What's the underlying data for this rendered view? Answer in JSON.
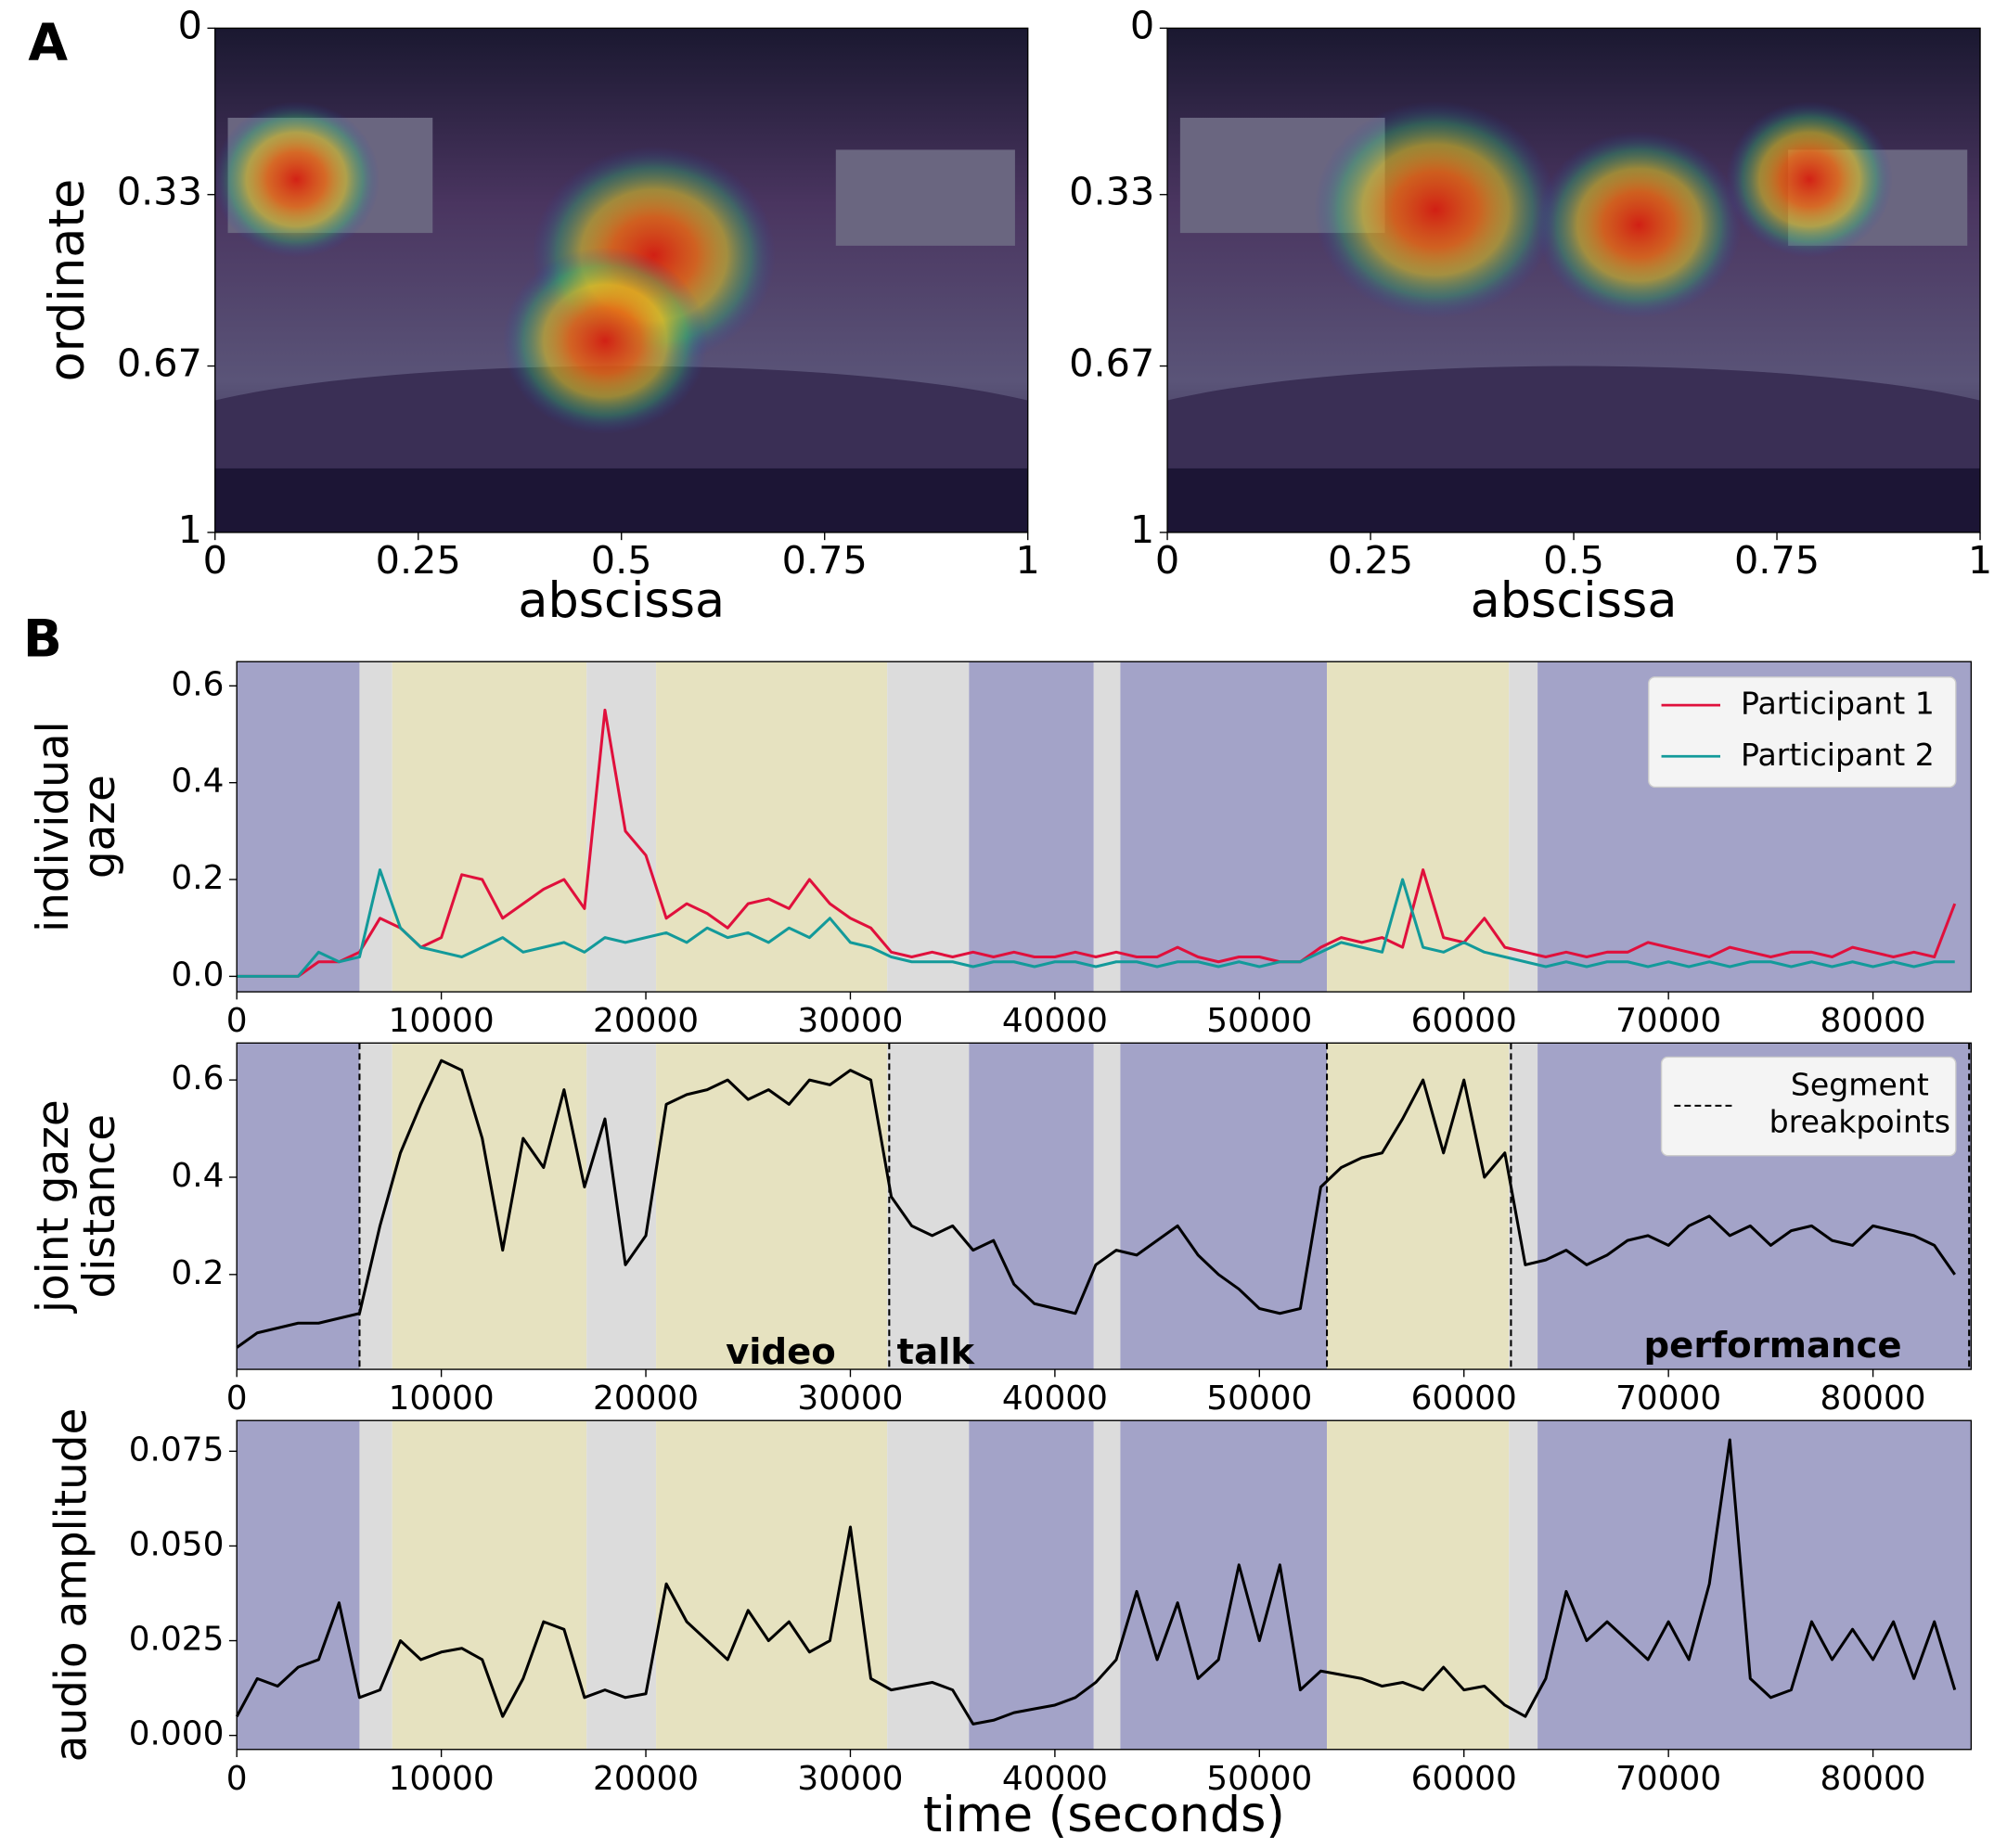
{
  "labels": [
    "A",
    "B"
  ],
  "chart_data": [
    {
      "type": "heatmap",
      "xlabel": "abscissa",
      "ylabel": "ordinate",
      "xlim": [
        0,
        1
      ],
      "ylim": [
        1,
        0
      ],
      "xticks": [
        0,
        0.25,
        0.5,
        0.75,
        1
      ],
      "yticks": [
        0,
        0.33,
        0.67,
        1
      ],
      "hotspots": [
        {
          "x": 0.54,
          "y": 0.45
        },
        {
          "x": 0.48,
          "y": 0.62
        },
        {
          "x": 0.1,
          "y": 0.3
        }
      ]
    },
    {
      "type": "heatmap",
      "xlabel": "abscissa",
      "xlim": [
        0,
        1
      ],
      "ylim": [
        1,
        0
      ],
      "xticks": [
        0,
        0.25,
        0.5,
        0.75,
        1
      ],
      "yticks": [
        0,
        0.33,
        0.67,
        1
      ],
      "hotspots": [
        {
          "x": 0.33,
          "y": 0.36
        },
        {
          "x": 0.58,
          "y": 0.39
        },
        {
          "x": 0.79,
          "y": 0.3
        }
      ]
    },
    {
      "type": "line",
      "ylabel": [
        "individual",
        "gaze"
      ],
      "legend": "upper right",
      "xlim": [
        0,
        84800
      ],
      "ylim": [
        -0.032,
        0.65
      ],
      "xticks": [
        0,
        10000,
        20000,
        30000,
        40000,
        50000,
        60000,
        70000,
        80000
      ],
      "yticks": [
        {
          "value": 0,
          "label": "0.0"
        },
        0.2,
        0.4,
        0.6
      ],
      "bands": {
        "edges": [
          0,
          6000,
          7600,
          17100,
          20500,
          31800,
          35800,
          41900,
          43200,
          53300,
          62200,
          63600,
          84800
        ],
        "colors": [
          "#a3a3c8",
          "#dcdcdc",
          "#e6e2c0",
          "#dcdcdc",
          "#e6e2c0",
          "#dcdcdc",
          "#a3a3c8",
          "#dcdcdc",
          "#a3a3c8",
          "#e6e2c0",
          "#dcdcdc",
          "#a3a3c8"
        ]
      },
      "x": [
        0,
        1000,
        2000,
        3000,
        4000,
        5000,
        6000,
        7000,
        8000,
        9000,
        10000,
        11000,
        12000,
        13000,
        14000,
        15000,
        16000,
        17000,
        18000,
        19000,
        20000,
        21000,
        22000,
        23000,
        24000,
        25000,
        26000,
        27000,
        28000,
        29000,
        30000,
        31000,
        32000,
        33000,
        34000,
        35000,
        36000,
        37000,
        38000,
        39000,
        40000,
        41000,
        42000,
        43000,
        44000,
        45000,
        46000,
        47000,
        48000,
        49000,
        50000,
        51000,
        52000,
        53000,
        54000,
        55000,
        56000,
        57000,
        58000,
        59000,
        60000,
        61000,
        62000,
        63000,
        64000,
        65000,
        66000,
        67000,
        68000,
        69000,
        70000,
        71000,
        72000,
        73000,
        74000,
        75000,
        76000,
        77000,
        78000,
        79000,
        80000,
        81000,
        82000,
        83000,
        84000
      ],
      "series": [
        {
          "name": "Participant 1",
          "color": "#e0103c",
          "values": [
            0,
            0,
            0,
            0,
            0.03,
            0.03,
            0.05,
            0.12,
            0.1,
            0.06,
            0.08,
            0.21,
            0.2,
            0.12,
            0.15,
            0.18,
            0.2,
            0.14,
            0.55,
            0.3,
            0.25,
            0.12,
            0.15,
            0.13,
            0.1,
            0.15,
            0.16,
            0.14,
            0.2,
            0.15,
            0.12,
            0.1,
            0.05,
            0.04,
            0.05,
            0.04,
            0.05,
            0.04,
            0.05,
            0.04,
            0.04,
            0.05,
            0.04,
            0.05,
            0.04,
            0.04,
            0.06,
            0.04,
            0.03,
            0.04,
            0.04,
            0.03,
            0.03,
            0.06,
            0.08,
            0.07,
            0.08,
            0.06,
            0.22,
            0.08,
            0.07,
            0.12,
            0.06,
            0.05,
            0.04,
            0.05,
            0.04,
            0.05,
            0.05,
            0.07,
            0.06,
            0.05,
            0.04,
            0.06,
            0.05,
            0.04,
            0.05,
            0.05,
            0.04,
            0.06,
            0.05,
            0.04,
            0.05,
            0.04,
            0.15
          ]
        },
        {
          "name": "Participant 2",
          "color": "#139a9a",
          "values": [
            0,
            0,
            0,
            0,
            0.05,
            0.03,
            0.04,
            0.22,
            0.1,
            0.06,
            0.05,
            0.04,
            0.06,
            0.08,
            0.05,
            0.06,
            0.07,
            0.05,
            0.08,
            0.07,
            0.08,
            0.09,
            0.07,
            0.1,
            0.08,
            0.09,
            0.07,
            0.1,
            0.08,
            0.12,
            0.07,
            0.06,
            0.04,
            0.03,
            0.03,
            0.03,
            0.02,
            0.03,
            0.03,
            0.02,
            0.03,
            0.03,
            0.02,
            0.03,
            0.03,
            0.02,
            0.03,
            0.03,
            0.02,
            0.03,
            0.02,
            0.03,
            0.03,
            0.05,
            0.07,
            0.06,
            0.05,
            0.2,
            0.06,
            0.05,
            0.07,
            0.05,
            0.04,
            0.03,
            0.02,
            0.03,
            0.02,
            0.03,
            0.03,
            0.02,
            0.03,
            0.02,
            0.03,
            0.02,
            0.03,
            0.03,
            0.02,
            0.03,
            0.02,
            0.03,
            0.02,
            0.03,
            0.02,
            0.03,
            0.03
          ]
        }
      ]
    },
    {
      "type": "line",
      "ylabel": [
        "joint gaze",
        "distance"
      ],
      "legend": "upper right",
      "xlim": [
        0,
        84800
      ],
      "ylim": [
        0.005,
        0.676
      ],
      "xticks": [
        0,
        10000,
        20000,
        30000,
        40000,
        50000,
        60000,
        70000,
        80000
      ],
      "yticks": [
        0.2,
        0.4,
        0.6
      ],
      "bands": {
        "edges": [
          0,
          6000,
          7600,
          17100,
          20500,
          31800,
          35800,
          41900,
          43200,
          53300,
          62200,
          63600,
          84800
        ],
        "colors": [
          "#a3a3c8",
          "#dcdcdc",
          "#e6e2c0",
          "#dcdcdc",
          "#e6e2c0",
          "#dcdcdc",
          "#a3a3c8",
          "#dcdcdc",
          "#a3a3c8",
          "#e6e2c0",
          "#dcdcdc",
          "#a3a3c8"
        ]
      },
      "breakpoints": {
        "name": [
          "Segment",
          "breakpoints"
        ],
        "x": [
          6000,
          31900,
          53300,
          62300,
          84700
        ]
      },
      "annotations": [
        "video",
        "talk",
        "performance"
      ],
      "x": [
        0,
        1000,
        2000,
        3000,
        4000,
        5000,
        6000,
        7000,
        8000,
        9000,
        10000,
        11000,
        12000,
        13000,
        14000,
        15000,
        16000,
        17000,
        18000,
        19000,
        20000,
        21000,
        22000,
        23000,
        24000,
        25000,
        26000,
        27000,
        28000,
        29000,
        30000,
        31000,
        32000,
        33000,
        34000,
        35000,
        36000,
        37000,
        38000,
        39000,
        40000,
        41000,
        42000,
        43000,
        44000,
        45000,
        46000,
        47000,
        48000,
        49000,
        50000,
        51000,
        52000,
        53000,
        54000,
        55000,
        56000,
        57000,
        58000,
        59000,
        60000,
        61000,
        62000,
        63000,
        64000,
        65000,
        66000,
        67000,
        68000,
        69000,
        70000,
        71000,
        72000,
        73000,
        74000,
        75000,
        76000,
        77000,
        78000,
        79000,
        80000,
        81000,
        82000,
        83000,
        84000
      ],
      "series": [
        {
          "color": "#000000",
          "values": [
            0.05,
            0.08,
            0.09,
            0.1,
            0.1,
            0.11,
            0.12,
            0.3,
            0.45,
            0.55,
            0.64,
            0.62,
            0.48,
            0.25,
            0.48,
            0.42,
            0.58,
            0.38,
            0.52,
            0.22,
            0.28,
            0.55,
            0.57,
            0.58,
            0.6,
            0.56,
            0.58,
            0.55,
            0.6,
            0.59,
            0.62,
            0.6,
            0.36,
            0.3,
            0.28,
            0.3,
            0.25,
            0.27,
            0.18,
            0.14,
            0.13,
            0.12,
            0.22,
            0.25,
            0.24,
            0.27,
            0.3,
            0.24,
            0.2,
            0.17,
            0.13,
            0.12,
            0.13,
            0.38,
            0.42,
            0.44,
            0.45,
            0.52,
            0.6,
            0.45,
            0.6,
            0.4,
            0.45,
            0.22,
            0.23,
            0.25,
            0.22,
            0.24,
            0.27,
            0.28,
            0.26,
            0.3,
            0.32,
            0.28,
            0.3,
            0.26,
            0.29,
            0.3,
            0.27,
            0.26,
            0.3,
            0.29,
            0.28,
            0.26,
            0.2
          ]
        }
      ]
    },
    {
      "type": "line",
      "ylabel": [
        "audio amplitude"
      ],
      "xlabel": "time (seconds)",
      "xlim": [
        0,
        84800
      ],
      "ylim": [
        -0.0037,
        0.0831
      ],
      "xticks": [
        0,
        10000,
        20000,
        30000,
        40000,
        50000,
        60000,
        70000,
        80000
      ],
      "yticks": [
        {
          "value": 0,
          "label": "0.000"
        },
        {
          "value": 0.025,
          "label": "0.025"
        },
        {
          "value": 0.05,
          "label": "0.050"
        },
        {
          "value": 0.075,
          "label": "0.075"
        }
      ],
      "bands": {
        "edges": [
          0,
          6000,
          7600,
          17100,
          20500,
          31800,
          35800,
          41900,
          43200,
          53300,
          62200,
          63600,
          84800
        ],
        "colors": [
          "#a3a3c8",
          "#dcdcdc",
          "#e6e2c0",
          "#dcdcdc",
          "#e6e2c0",
          "#dcdcdc",
          "#a3a3c8",
          "#dcdcdc",
          "#a3a3c8",
          "#e6e2c0",
          "#dcdcdc",
          "#a3a3c8"
        ]
      },
      "x": [
        0,
        1000,
        2000,
        3000,
        4000,
        5000,
        6000,
        7000,
        8000,
        9000,
        10000,
        11000,
        12000,
        13000,
        14000,
        15000,
        16000,
        17000,
        18000,
        19000,
        20000,
        21000,
        22000,
        23000,
        24000,
        25000,
        26000,
        27000,
        28000,
        29000,
        30000,
        31000,
        32000,
        33000,
        34000,
        35000,
        36000,
        37000,
        38000,
        39000,
        40000,
        41000,
        42000,
        43000,
        44000,
        45000,
        46000,
        47000,
        48000,
        49000,
        50000,
        51000,
        52000,
        53000,
        54000,
        55000,
        56000,
        57000,
        58000,
        59000,
        60000,
        61000,
        62000,
        63000,
        64000,
        65000,
        66000,
        67000,
        68000,
        69000,
        70000,
        71000,
        72000,
        73000,
        74000,
        75000,
        76000,
        77000,
        78000,
        79000,
        80000,
        81000,
        82000,
        83000,
        84000
      ],
      "series": [
        {
          "color": "#000000",
          "values": [
            0.005,
            0.015,
            0.013,
            0.018,
            0.02,
            0.035,
            0.01,
            0.012,
            0.025,
            0.02,
            0.022,
            0.023,
            0.02,
            0.005,
            0.015,
            0.03,
            0.028,
            0.01,
            0.012,
            0.01,
            0.011,
            0.04,
            0.03,
            0.025,
            0.02,
            0.033,
            0.025,
            0.03,
            0.022,
            0.025,
            0.055,
            0.015,
            0.012,
            0.013,
            0.014,
            0.012,
            0.003,
            0.004,
            0.006,
            0.007,
            0.008,
            0.01,
            0.014,
            0.02,
            0.038,
            0.02,
            0.035,
            0.015,
            0.02,
            0.045,
            0.025,
            0.045,
            0.012,
            0.017,
            0.016,
            0.015,
            0.013,
            0.014,
            0.012,
            0.018,
            0.012,
            0.013,
            0.008,
            0.005,
            0.015,
            0.038,
            0.025,
            0.03,
            0.025,
            0.02,
            0.03,
            0.02,
            0.04,
            0.078,
            0.015,
            0.01,
            0.012,
            0.03,
            0.02,
            0.028,
            0.02,
            0.03,
            0.015,
            0.03,
            0.012
          ]
        }
      ]
    }
  ]
}
